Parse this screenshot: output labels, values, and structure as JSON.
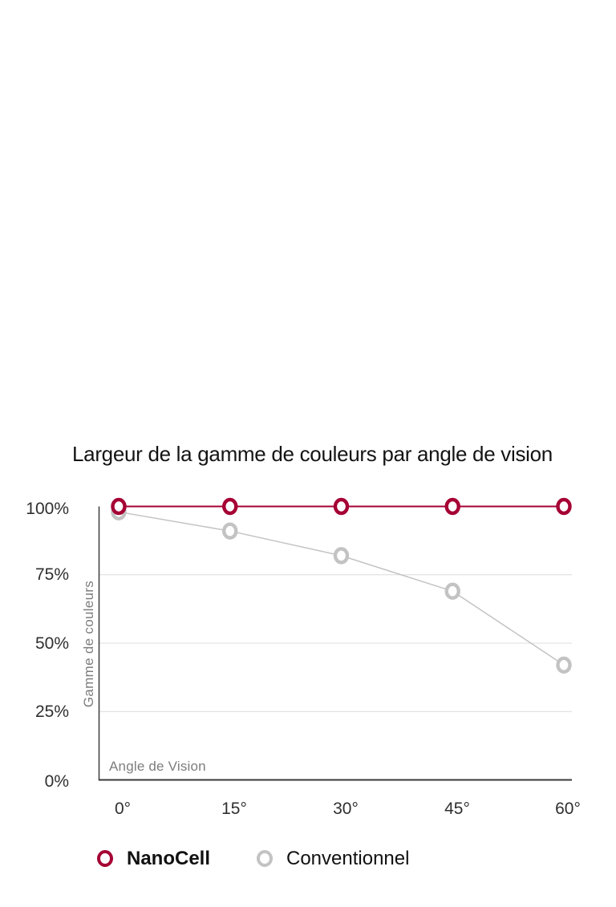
{
  "chart_data": {
    "type": "line",
    "title": "Largeur de la gamme de couleurs par angle de vision",
    "xlabel": "Angle de Vision",
    "ylabel": "Gamme de couleurs",
    "categories": [
      "0°",
      "15°",
      "30°",
      "45°",
      "60°"
    ],
    "y_ticks": [
      "100%",
      "75%",
      "50%",
      "25%",
      "0%"
    ],
    "ylim": [
      0,
      100
    ],
    "gridlines": [
      75,
      50,
      25
    ],
    "grid": "horizontal",
    "legend_position": "bottom-left",
    "marker_style": "open-ring",
    "axis_color": "#3a3a3a",
    "gridline_color": "#dcdcdc",
    "series": [
      {
        "name": "NanoCell",
        "color": "#a50034",
        "values": [
          100,
          100,
          100,
          100,
          100
        ]
      },
      {
        "name": "Conventionnel",
        "color": "#c3c3c3",
        "values": [
          98,
          91,
          82,
          69,
          42
        ]
      }
    ]
  }
}
